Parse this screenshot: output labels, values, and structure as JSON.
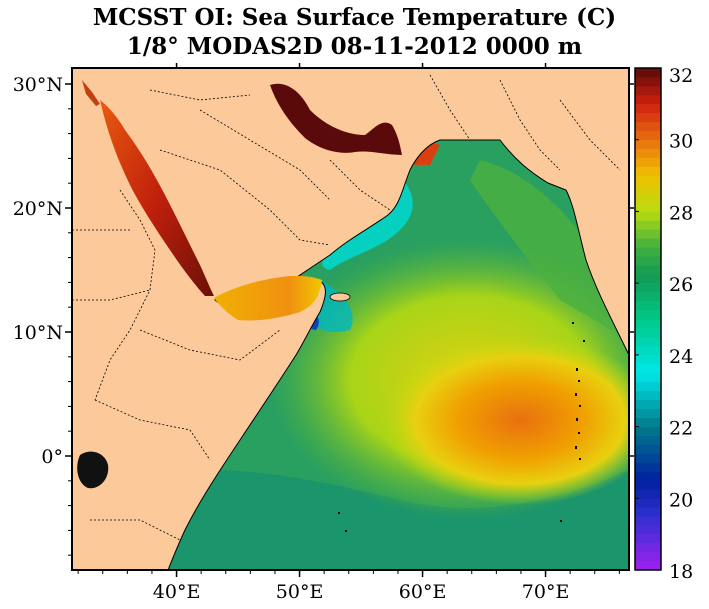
{
  "title": "MCSST OI:  Sea Surface Temperature (C)",
  "subtitle": "1/8° MODAS2D 08-11-2012 0000 m",
  "lat_ticks": [
    {
      "value": 30,
      "label": "30°N"
    },
    {
      "value": 20,
      "label": "20°N"
    },
    {
      "value": 10,
      "label": "10°N"
    },
    {
      "value": 0,
      "label": "0°"
    }
  ],
  "lon_ticks": [
    {
      "value": 40,
      "label": "40°E"
    },
    {
      "value": 50,
      "label": "50°E"
    },
    {
      "value": 60,
      "label": "60°E"
    },
    {
      "value": 70,
      "label": "70°E"
    }
  ],
  "colorbar": {
    "min": 18,
    "max": 32,
    "tick_labels": [
      "32",
      "30",
      "28",
      "26",
      "24",
      "22",
      "20",
      "18"
    ],
    "stops": [
      {
        "value": 18,
        "color": "#a020f0"
      },
      {
        "value": 19.5,
        "color": "#3030d0"
      },
      {
        "value": 20.5,
        "color": "#0020a0"
      },
      {
        "value": 22,
        "color": "#007a8a"
      },
      {
        "value": 23.5,
        "color": "#00e8e8"
      },
      {
        "value": 25,
        "color": "#00c888"
      },
      {
        "value": 26.2,
        "color": "#139a55"
      },
      {
        "value": 27,
        "color": "#40b040"
      },
      {
        "value": 28,
        "color": "#b8dc10"
      },
      {
        "value": 29,
        "color": "#f0c000"
      },
      {
        "value": 30,
        "color": "#e87010"
      },
      {
        "value": 31,
        "color": "#d02010"
      },
      {
        "value": 32,
        "color": "#5a0a0a"
      }
    ]
  },
  "colors": {
    "land": "#fcc99b",
    "border_line": "#000000",
    "frame": "#000000"
  }
}
